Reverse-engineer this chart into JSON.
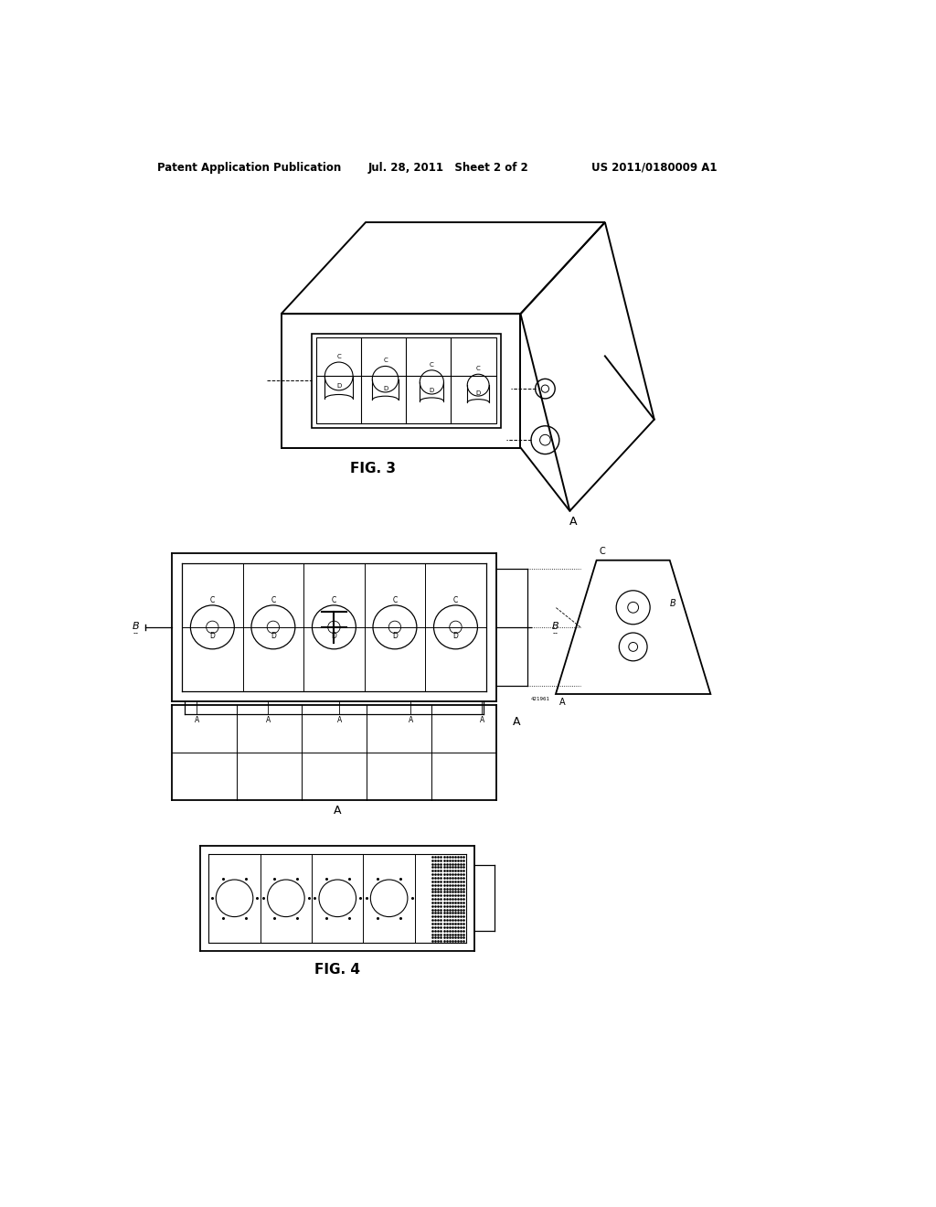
{
  "bg_color": "#ffffff",
  "header_left": "Patent Application Publication",
  "header_center": "Jul. 28, 2011   Sheet 2 of 2",
  "header_right": "US 2011/0180009 A1",
  "fig3_label": "FIG. 3",
  "fig4_label": "FIG. 4",
  "line_color": "#000000",
  "text_color": "#000000"
}
